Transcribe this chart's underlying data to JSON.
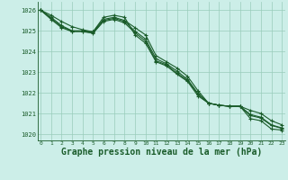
{
  "background_color": "#cceee8",
  "grid_color": "#99ccbb",
  "line_color": "#1a5c2a",
  "xlabel": "Graphe pression niveau de la mer (hPa)",
  "xlabel_fontsize": 7.0,
  "ylabel_values": [
    1020,
    1021,
    1022,
    1023,
    1024,
    1025,
    1026
  ],
  "xlim": [
    -0.3,
    23.3
  ],
  "ylim": [
    1019.7,
    1026.4
  ],
  "series": [
    [
      1026.0,
      1025.75,
      1025.45,
      1025.2,
      1025.05,
      1024.95,
      1025.65,
      1025.75,
      1025.65,
      1024.8,
      1024.4,
      1023.5,
      1023.3,
      1022.9,
      1022.55,
      1021.85,
      1021.5,
      1021.4,
      1021.35,
      1021.35,
      1020.75,
      1020.65,
      1020.25,
      1020.2
    ],
    [
      1026.0,
      1025.65,
      1025.25,
      1025.0,
      1025.0,
      1024.95,
      1025.55,
      1025.65,
      1025.5,
      1025.15,
      1024.8,
      1023.8,
      1023.5,
      1023.2,
      1022.8,
      1022.1,
      1021.5,
      1021.4,
      1021.35,
      1021.35,
      1021.15,
      1021.0,
      1020.65,
      1020.45
    ],
    [
      1026.0,
      1025.6,
      1025.2,
      1024.98,
      1024.98,
      1024.9,
      1025.5,
      1025.6,
      1025.45,
      1024.98,
      1024.6,
      1023.65,
      1023.4,
      1023.05,
      1022.65,
      1021.97,
      1021.5,
      1021.4,
      1021.35,
      1021.35,
      1020.95,
      1020.82,
      1020.45,
      1020.3
    ],
    [
      1026.0,
      1025.55,
      1025.15,
      1024.96,
      1024.96,
      1024.88,
      1025.45,
      1025.55,
      1025.38,
      1024.9,
      1024.5,
      1023.55,
      1023.35,
      1022.95,
      1022.6,
      1021.93,
      1021.5,
      1021.4,
      1021.35,
      1021.35,
      1020.9,
      1020.78,
      1020.42,
      1020.28
    ]
  ]
}
